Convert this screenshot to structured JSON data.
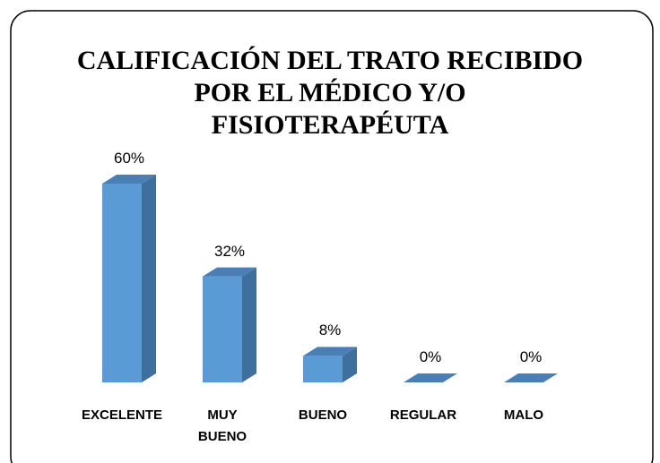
{
  "chart_data": {
    "type": "bar3d",
    "title": [
      "CALIFICACIÓN DEL TRATO RECIBIDO",
      "POR EL MÉDICO Y/O",
      "FISIOTERAPÉUTA"
    ],
    "categories": [
      "EXCELENTE",
      "MUY BUENO",
      "BUENO",
      "REGULAR",
      "MALO"
    ],
    "values": [
      60,
      32,
      8,
      0,
      0
    ],
    "value_labels": [
      "60%",
      "32%",
      "8%",
      "0%",
      "0%"
    ],
    "color": "#5b9bd5"
  }
}
